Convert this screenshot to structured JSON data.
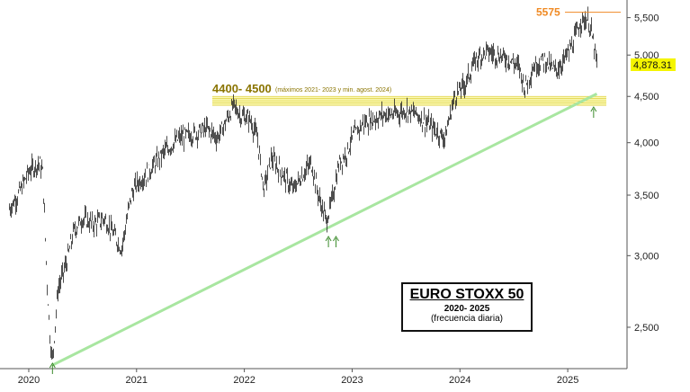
{
  "chart_data": {
    "type": "ohlc",
    "title": "EURO STOXX 50",
    "subtitle": "2020- 2025",
    "note": "(frecuencia diaria)",
    "y_scale": "log",
    "ylim": [
      2250,
      5700
    ],
    "xlim": [
      2019.8,
      2025.55
    ],
    "y_ticks": [
      {
        "value": 2500,
        "label": "2,500"
      },
      {
        "value": 3000,
        "label": "3,000"
      },
      {
        "value": 3500,
        "label": "3,500"
      },
      {
        "value": 4000,
        "label": "4,000"
      },
      {
        "value": 4500,
        "label": "4,500"
      },
      {
        "value": 5000,
        "label": "5,000"
      },
      {
        "value": 5500,
        "label": "5,500"
      }
    ],
    "x_ticks": [
      {
        "value": 2020,
        "label": "2020"
      },
      {
        "value": 2021,
        "label": "2021"
      },
      {
        "value": 2022,
        "label": "2022"
      },
      {
        "value": 2023,
        "label": "2023"
      },
      {
        "value": 2024,
        "label": "2024"
      },
      {
        "value": 2025,
        "label": "2025"
      }
    ],
    "series_path": [
      [
        2019.82,
        3380
      ],
      [
        2019.9,
        3500
      ],
      [
        2020.0,
        3720
      ],
      [
        2020.1,
        3800
      ],
      [
        2020.13,
        3700
      ],
      [
        2020.17,
        2800
      ],
      [
        2020.2,
        2400
      ],
      [
        2020.22,
        2300
      ],
      [
        2020.27,
        2750
      ],
      [
        2020.35,
        2950
      ],
      [
        2020.42,
        3200
      ],
      [
        2020.5,
        3300
      ],
      [
        2020.6,
        3250
      ],
      [
        2020.7,
        3300
      ],
      [
        2020.8,
        3150
      ],
      [
        2020.86,
        3050
      ],
      [
        2020.95,
        3500
      ],
      [
        2021.0,
        3600
      ],
      [
        2021.1,
        3700
      ],
      [
        2021.25,
        3900
      ],
      [
        2021.4,
        4050
      ],
      [
        2021.55,
        4100
      ],
      [
        2021.65,
        4150
      ],
      [
        2021.75,
        4050
      ],
      [
        2021.82,
        4200
      ],
      [
        2021.9,
        4400
      ],
      [
        2021.97,
        4280
      ],
      [
        2022.05,
        4250
      ],
      [
        2022.12,
        4050
      ],
      [
        2022.18,
        3550
      ],
      [
        2022.25,
        3850
      ],
      [
        2022.35,
        3700
      ],
      [
        2022.45,
        3550
      ],
      [
        2022.55,
        3700
      ],
      [
        2022.62,
        3800
      ],
      [
        2022.7,
        3450
      ],
      [
        2022.76,
        3280
      ],
      [
        2022.8,
        3400
      ],
      [
        2022.88,
        3800
      ],
      [
        2022.95,
        3900
      ],
      [
        2023.0,
        4050
      ],
      [
        2023.1,
        4200
      ],
      [
        2023.2,
        4250
      ],
      [
        2023.3,
        4300
      ],
      [
        2023.4,
        4300
      ],
      [
        2023.5,
        4350
      ],
      [
        2023.6,
        4300
      ],
      [
        2023.7,
        4200
      ],
      [
        2023.8,
        4100
      ],
      [
        2023.86,
        4050
      ],
      [
        2023.95,
        4500
      ],
      [
        2024.05,
        4650
      ],
      [
        2024.15,
        4950
      ],
      [
        2024.25,
        5050
      ],
      [
        2024.35,
        5000
      ],
      [
        2024.45,
        4950
      ],
      [
        2024.55,
        4850
      ],
      [
        2024.6,
        4600
      ],
      [
        2024.68,
        4850
      ],
      [
        2024.78,
        4950
      ],
      [
        2024.88,
        4800
      ],
      [
        2024.95,
        4900
      ],
      [
        2025.05,
        5150
      ],
      [
        2025.12,
        5450
      ],
      [
        2025.18,
        5480
      ],
      [
        2025.22,
        5300
      ],
      [
        2025.25,
        5050
      ],
      [
        2025.27,
        4878.31
      ]
    ],
    "lines": [
      {
        "name": "trend-line",
        "color": "#a8e6a0",
        "from": [
          2020.22,
          2270
        ],
        "to": [
          2025.27,
          4530
        ]
      },
      {
        "name": "resistance-band",
        "color": "#f5f57a",
        "from_value": 4400,
        "to_value": 4500
      }
    ],
    "annotations": {
      "band_label": "4400- 4500",
      "band_note": "(máximos 2021- 2023 y min. agost. 2024)",
      "high_label": "5575",
      "high_value": 5575,
      "last_value": 4878.31,
      "last_label": "4,878.31"
    },
    "arrow_markers_x": [
      2020.22,
      2022.78,
      2022.85,
      2025.24
    ],
    "colors": {
      "price": "#222222",
      "trend": "#a8e6a0",
      "band": "#f5f57a",
      "band_text": "#8a7400",
      "high": "#f08a24",
      "last_box": "#f5f500"
    }
  }
}
